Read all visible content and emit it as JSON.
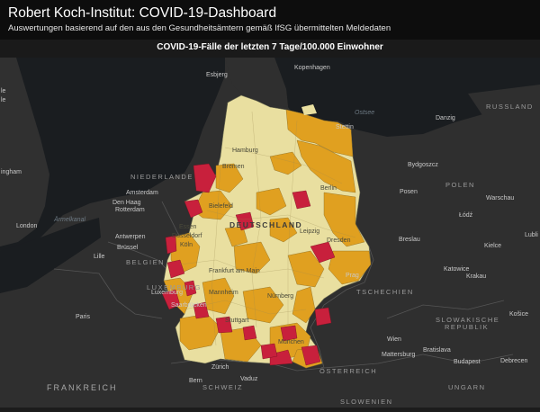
{
  "header": {
    "title": "Robert Koch-Institut: COVID-19-Dashboard",
    "subtitle": "Auswertungen basierend auf den aus den Gesundheitsämtern gemäß IfSG übermittelten Meldedaten"
  },
  "map": {
    "title": "COVID-19-Fälle der letzten 7 Tage/100.000 Einwohner",
    "colors": {
      "background": "#1c1c1c",
      "land": "#2f2f2f",
      "water": "#1a1d20",
      "border": "#555555",
      "incidence_low": "#e9dfa0",
      "incidence_mid": "#e0a020",
      "incidence_high": "#c8203c"
    },
    "labels": {
      "rostock_top": "Esbjerg",
      "kopenhagen": "Kopenhagen",
      "ostsee": "Ostsee",
      "russland": "RUSSLAND",
      "danzig": "Danzig",
      "hamburg": "Hamburg",
      "stettin": "Stettin",
      "bydgoszcz": "Bydgoszcz",
      "niederlande": "NIEDERLANDE",
      "bremen": "Bremen",
      "berlin": "Berlin",
      "polen": "POLEN",
      "posen": "Posen",
      "warsaw": "Warschau",
      "amsterdam": "Amsterdam",
      "denhaag": "Den Haag",
      "rotterdam": "Rotterdam",
      "london": "London",
      "aermelkanal": "Ärmelkanal",
      "bielefeld": "Bielefeld",
      "deutschland": "DEUTSCHLAND",
      "lodz": "Łódź",
      "essen": "Essen",
      "duesseldorf": "Düsseldorf",
      "antwerpen": "Antwerpen",
      "bruessel": "Brüssel",
      "koeln": "Köln",
      "leipzig": "Leipzig",
      "dresden": "Dresden",
      "breslau": "Breslau",
      "lublin": "Lubli",
      "kielce": "Kielce",
      "lille": "Lille",
      "belgien": "BELGIEN",
      "frankfurt": "Frankfurt am Main",
      "prag": "Prag",
      "katowice": "Katowice",
      "krakau": "Krakau",
      "luxemburg_country": "LUXEMBURG",
      "luxemburg": "Luxemburg",
      "mannheim": "Mannheim",
      "nuernberg": "Nürnberg",
      "tschechien": "TSCHECHIEN",
      "saarbruecken": "Saarbrücken",
      "paris": "Paris",
      "stuttgart": "Stuttgart",
      "slowakische": "SLOWAKISCHE",
      "republik": "REPUBLIK",
      "kosice": "Košice",
      "muenchen": "München",
      "wien": "Wien",
      "mattersburg": "Mattersburg",
      "bratislava": "Bratislava",
      "budapest": "Budapest",
      "debrecen": "Debrecen",
      "zuerich": "Zürich",
      "oesterreich": "ÖSTERREICH",
      "bern": "Bern",
      "vaduz": "Vaduz",
      "schweiz": "SCHWEIZ",
      "frankreich": "FRANKREICH",
      "slowenien": "SLOWENIEN",
      "ungarn": "UNGARN",
      "left_le": "le",
      "left_lle": "le",
      "left_ingham": "ingham"
    }
  }
}
